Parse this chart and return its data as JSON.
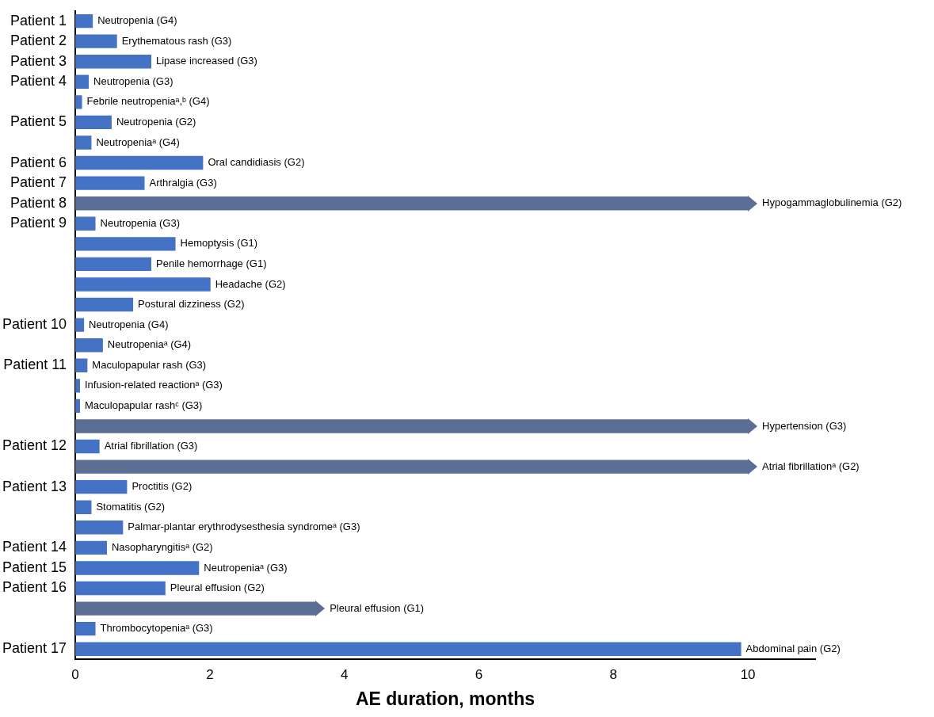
{
  "chart_data": {
    "type": "bar",
    "orientation": "horizontal",
    "xlabel": "AE duration, months",
    "categories": [
      "Patient 1",
      "Patient 2",
      "Patient 3",
      "Patient 4",
      null,
      "Patient 5",
      null,
      "Patient 6",
      "Patient 7",
      "Patient 8",
      "Patient 9",
      null,
      null,
      null,
      null,
      "Patient 10",
      null,
      "Patient 11",
      null,
      null,
      null,
      "Patient 12",
      null,
      "Patient 13",
      null,
      null,
      "Patient 14",
      "Patient 15",
      "Patient 16",
      null,
      null,
      "Patient 17"
    ],
    "series": [
      {
        "color": "#4472c4",
        "values": [
          0.26,
          0.62,
          1.13,
          0.2,
          0.1,
          0.54,
          0.24,
          1.9,
          1.03,
          null,
          0.3,
          1.49,
          1.13,
          2.01,
          0.86,
          0.13,
          0.41,
          0.18,
          0.07,
          0.07,
          null,
          0.36,
          null,
          0.77,
          0.24,
          0.71,
          0.47,
          1.84,
          1.34,
          null,
          0.3,
          9.9
        ],
        "value_labels": [
          "Neutropenia (G4)",
          "Erythematous rash (G3)",
          "Lipase increased (G3)",
          "Neutropenia (G3)",
          "Febrile neutropeniaᵃ,ᵇ (G4)",
          "Neutropenia (G2)",
          "Neutropeniaᵃ (G4)",
          "Oral candidiasis (G2)",
          "Arthralgia (G3)",
          null,
          "Neutropenia (G3)",
          "Hemoptysis (G1)",
          "Penile hemorrhage (G1)",
          "Headache (G2)",
          "Postural dizziness (G2)",
          "Neutropenia (G4)",
          "Neutropeniaᵃ (G4)",
          "Maculopapular rash (G3)",
          "Infusion-related reactionᵃ (G3)",
          "Maculopapular rashᶜ (G3)",
          null,
          "Atrial fibrillation (G3)",
          null,
          "Proctitis (G2)",
          "Stomatitis (G2)",
          "Palmar-plantar erythrodysesthesia syndromeᵃ (G3)",
          "Nasopharyngitisᵃ (G2)",
          "Neutropeniaᵃ (G3)",
          "Pleural effusion (G2)",
          null,
          "Thrombocytopeniaᵃ (G3)",
          "Abdominal pain (G2)"
        ]
      },
      {
        "color": "#5b6f96",
        "values": [
          null,
          null,
          null,
          null,
          null,
          null,
          null,
          null,
          null,
          10,
          null,
          null,
          null,
          null,
          null,
          null,
          null,
          null,
          null,
          null,
          10,
          null,
          10,
          null,
          null,
          null,
          null,
          null,
          null,
          3.57,
          null,
          null
        ],
        "value_labels": [
          null,
          null,
          null,
          null,
          null,
          null,
          null,
          null,
          null,
          "Hypogammaglobulinemia (G2)",
          null,
          null,
          null,
          null,
          null,
          null,
          null,
          null,
          null,
          null,
          "Hypertension (G3)",
          null,
          "Atrial fibrillationᵃ (G2)",
          null,
          null,
          null,
          null,
          null,
          null,
          "Pleural effusion (G1)",
          null,
          null
        ]
      }
    ],
    "xlim": [
      0,
      11
    ],
    "xticks": [
      0,
      2,
      4,
      6,
      8,
      10
    ],
    "grid": false,
    "legend": false
  }
}
